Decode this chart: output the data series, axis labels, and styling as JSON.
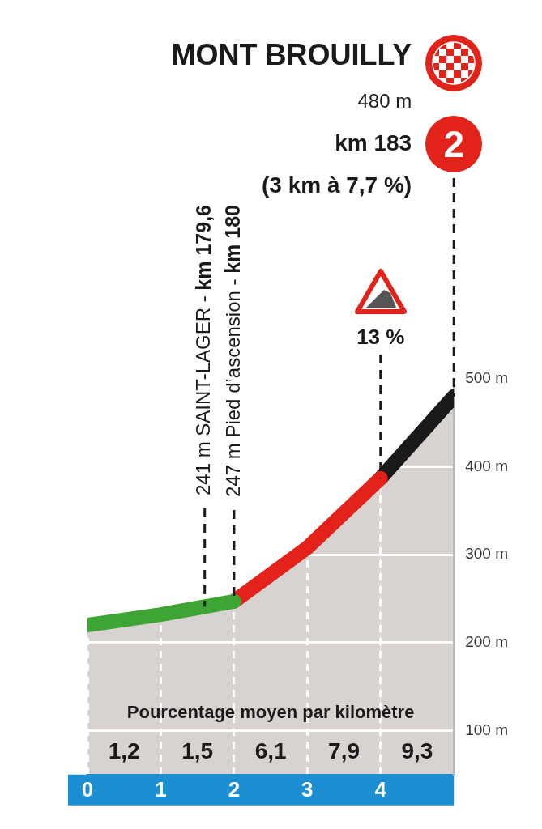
{
  "chart_data": {
    "type": "area",
    "title": "MONT BROUILLY",
    "series": [
      {
        "color": "#3ea535",
        "x": [
          0,
          1,
          2
        ],
        "values": [
          220,
          232,
          247
        ]
      },
      {
        "color": "#e3231b",
        "x": [
          2,
          3,
          4
        ],
        "values": [
          247,
          308,
          387
        ]
      },
      {
        "color": "#1a1a1a",
        "x": [
          4,
          5
        ],
        "values": [
          387,
          480
        ]
      }
    ],
    "xlim": [
      0,
      5
    ],
    "xticks": [
      0,
      1,
      2,
      3,
      4
    ],
    "ylim": [
      50,
      500
    ],
    "yticks": [
      {
        "value": 100,
        "label": "100 m"
      },
      {
        "value": 200,
        "label": "200 m"
      },
      {
        "value": 300,
        "label": "300 m"
      },
      {
        "value": 400,
        "label": "400 m"
      },
      {
        "value": 500,
        "label": "500 m"
      }
    ],
    "grid": true,
    "annotations": [
      "480 m",
      "km 183",
      "(3 km à 7,7 %)",
      {
        "text": "2",
        "x": 5,
        "y": 480
      },
      {
        "text": "241 m SAINT-LAGER - km 179,6",
        "x": 1.6,
        "y": 241
      },
      {
        "text": "247 m Pied d’ascension - km 180",
        "x": 2,
        "y": 247
      },
      {
        "text": "13 %",
        "x": 4,
        "y": 387
      },
      "Pourcentage moyen par kilomètre",
      "1,2",
      "1,5",
      "6,1",
      "7,9",
      "9,3"
    ]
  }
}
